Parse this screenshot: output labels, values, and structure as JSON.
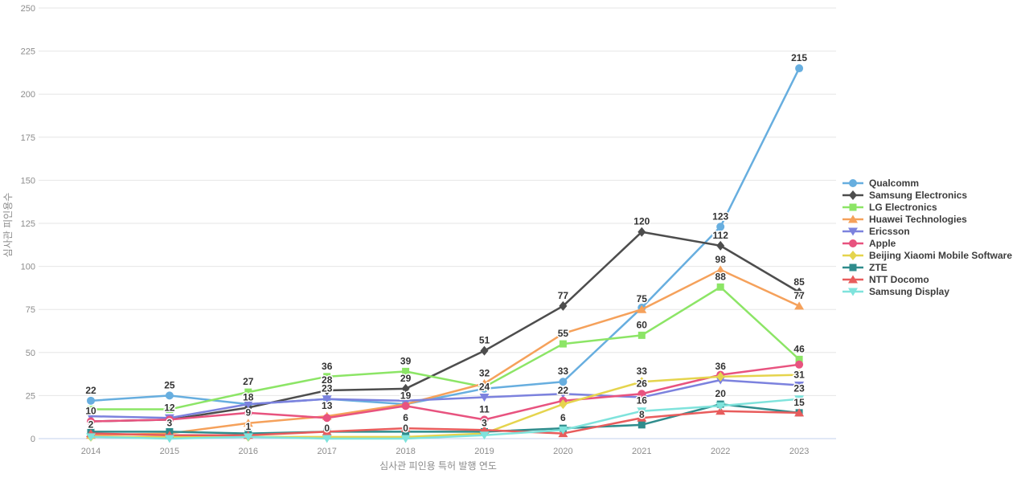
{
  "chart_data": {
    "type": "line",
    "title": "",
    "xlabel": "심사관 피인용 특허 발행 연도",
    "ylabel": "심사관 피인용수",
    "x": [
      2014,
      2015,
      2016,
      2017,
      2018,
      2019,
      2020,
      2021,
      2022,
      2023
    ],
    "ylim": [
      0,
      250
    ],
    "yticks": [
      0,
      25,
      50,
      75,
      100,
      125,
      150,
      175,
      200,
      225,
      250
    ],
    "grid": true,
    "legend_position": "right",
    "axis_text_color": "#8c8c8c",
    "label_text_color": "#333333",
    "grid_color": "#e6e6e6",
    "zero_line_color": "#c3d0ec",
    "series": [
      {
        "name": "Qualcomm",
        "color": "#67AEDF",
        "marker": "circle",
        "values": [
          22,
          25,
          20,
          23,
          20,
          29,
          33,
          76,
          123,
          215
        ],
        "labels": [
          "22",
          "25",
          "",
          "",
          "",
          "",
          "33",
          "",
          "123",
          "215"
        ]
      },
      {
        "name": "Samsung Electronics",
        "color": "#4D4D4D",
        "marker": "diamond",
        "values": [
          10,
          11,
          18,
          28,
          29,
          51,
          77,
          120,
          112,
          85
        ],
        "labels": [
          "10",
          "",
          "18",
          "28",
          "29",
          "51",
          "77",
          "120",
          "112",
          "85"
        ]
      },
      {
        "name": "LG Electronics",
        "color": "#8CE566",
        "marker": "square",
        "values": [
          17,
          17,
          27,
          36,
          39,
          30,
          55,
          60,
          88,
          46
        ],
        "labels": [
          "",
          "",
          "27",
          "36",
          "39",
          "",
          "55",
          "60",
          "88",
          "46"
        ]
      },
      {
        "name": "Huawei Technologies",
        "color": "#F5A15B",
        "marker": "triangle-up",
        "values": [
          2,
          3,
          9,
          13,
          20,
          32,
          61,
          75,
          98,
          77
        ],
        "labels": [
          "2",
          "3",
          "9",
          "13",
          "",
          "32",
          "",
          "75",
          "98",
          "77"
        ]
      },
      {
        "name": "Ericsson",
        "color": "#7C82DE",
        "marker": "triangle-down",
        "values": [
          13,
          12,
          20,
          23,
          22,
          24,
          26,
          24,
          34,
          31
        ],
        "labels": [
          "",
          "12",
          "",
          "23",
          "",
          "24",
          "",
          "",
          "",
          "31"
        ]
      },
      {
        "name": "Apple",
        "color": "#E8537F",
        "marker": "circle",
        "values": [
          10,
          11,
          15,
          12,
          19,
          11,
          22,
          26,
          37,
          43
        ],
        "labels": [
          "",
          "",
          "",
          "",
          "19",
          "11",
          "22",
          "26",
          "",
          ""
        ]
      },
      {
        "name": "Beijing Xiaomi Mobile Software",
        "color": "#E5D44D",
        "marker": "diamond",
        "values": [
          1,
          1,
          1,
          1,
          1,
          3,
          20,
          33,
          36,
          37
        ],
        "labels": [
          "",
          "",
          "1",
          "",
          "",
          "3",
          "",
          "33",
          "36",
          ""
        ]
      },
      {
        "name": "ZTE",
        "color": "#2F8C8C",
        "marker": "square",
        "values": [
          4,
          4,
          3,
          4,
          4,
          4,
          6,
          8,
          20,
          15
        ],
        "labels": [
          "",
          "",
          "",
          "",
          "",
          "",
          "6",
          "8",
          "20",
          "15"
        ]
      },
      {
        "name": "NTT Docomo",
        "color": "#E85C5C",
        "marker": "triangle-up",
        "values": [
          3,
          2,
          2,
          4,
          6,
          5,
          3,
          12,
          16,
          15
        ],
        "labels": [
          "",
          "",
          "",
          "",
          "6",
          "",
          "",
          "",
          "",
          ""
        ]
      },
      {
        "name": "Samsung Display",
        "color": "#7FE3DC",
        "marker": "triangle-down",
        "values": [
          1,
          0,
          1,
          0,
          0,
          2,
          5,
          16,
          19,
          23
        ],
        "labels": [
          "",
          "",
          "",
          "0",
          "0",
          "",
          "",
          "16",
          "",
          "23"
        ]
      }
    ]
  }
}
